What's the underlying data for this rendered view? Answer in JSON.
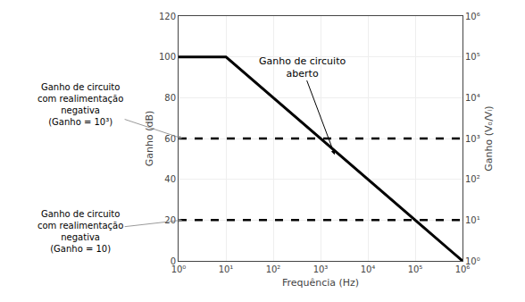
{
  "chart_data": {
    "type": "line",
    "log": "x",
    "grid": true,
    "xlabel": "Frequência (Hz)",
    "ylabel": "Ganho (dB)",
    "y2label": "Ganho (Vₒ/Vᵢ)",
    "xlim": [
      1,
      1000000
    ],
    "xticks": [
      {
        "value": 1,
        "label": "10⁰"
      },
      {
        "value": 10,
        "label": "10¹"
      },
      {
        "value": 100,
        "label": "10²"
      },
      {
        "value": 1000,
        "label": "10³"
      },
      {
        "value": 10000,
        "label": "10⁴"
      },
      {
        "value": 100000,
        "label": "10⁵"
      },
      {
        "value": 1000000,
        "label": "10⁶"
      }
    ],
    "ylim": [
      0,
      120
    ],
    "yticks": [
      0,
      20,
      40,
      60,
      80,
      100,
      120
    ],
    "y2lim": [
      0,
      120
    ],
    "y2ticks": [
      {
        "value": 0,
        "label": "10⁰"
      },
      {
        "value": 20,
        "label": "10¹"
      },
      {
        "value": 40,
        "label": "10²"
      },
      {
        "value": 60,
        "label": "10³"
      },
      {
        "value": 80,
        "label": "10⁴"
      },
      {
        "value": 100,
        "label": "10⁵"
      },
      {
        "value": 120,
        "label": "10⁶"
      }
    ],
    "series": [
      {
        "x": [
          1,
          10,
          1000000
        ],
        "values": [
          100,
          100,
          0
        ],
        "color": "#000000",
        "line_style": "solid"
      },
      {
        "x": [
          1,
          1000000
        ],
        "values": [
          60,
          60
        ],
        "color": "#000000",
        "line_style": "dash"
      },
      {
        "x": [
          1,
          1000000
        ],
        "values": [
          20,
          20
        ],
        "color": "#000000",
        "line_style": "dash"
      }
    ],
    "annotations": [
      "Ganho de circuito\naberto",
      "Ganho de circuito\ncom realimentação\nnegativa\n(Ganho = 10³)",
      "Ganho de circuito\ncom realimentação\nnegativa\n(Ganho = 10)"
    ]
  }
}
